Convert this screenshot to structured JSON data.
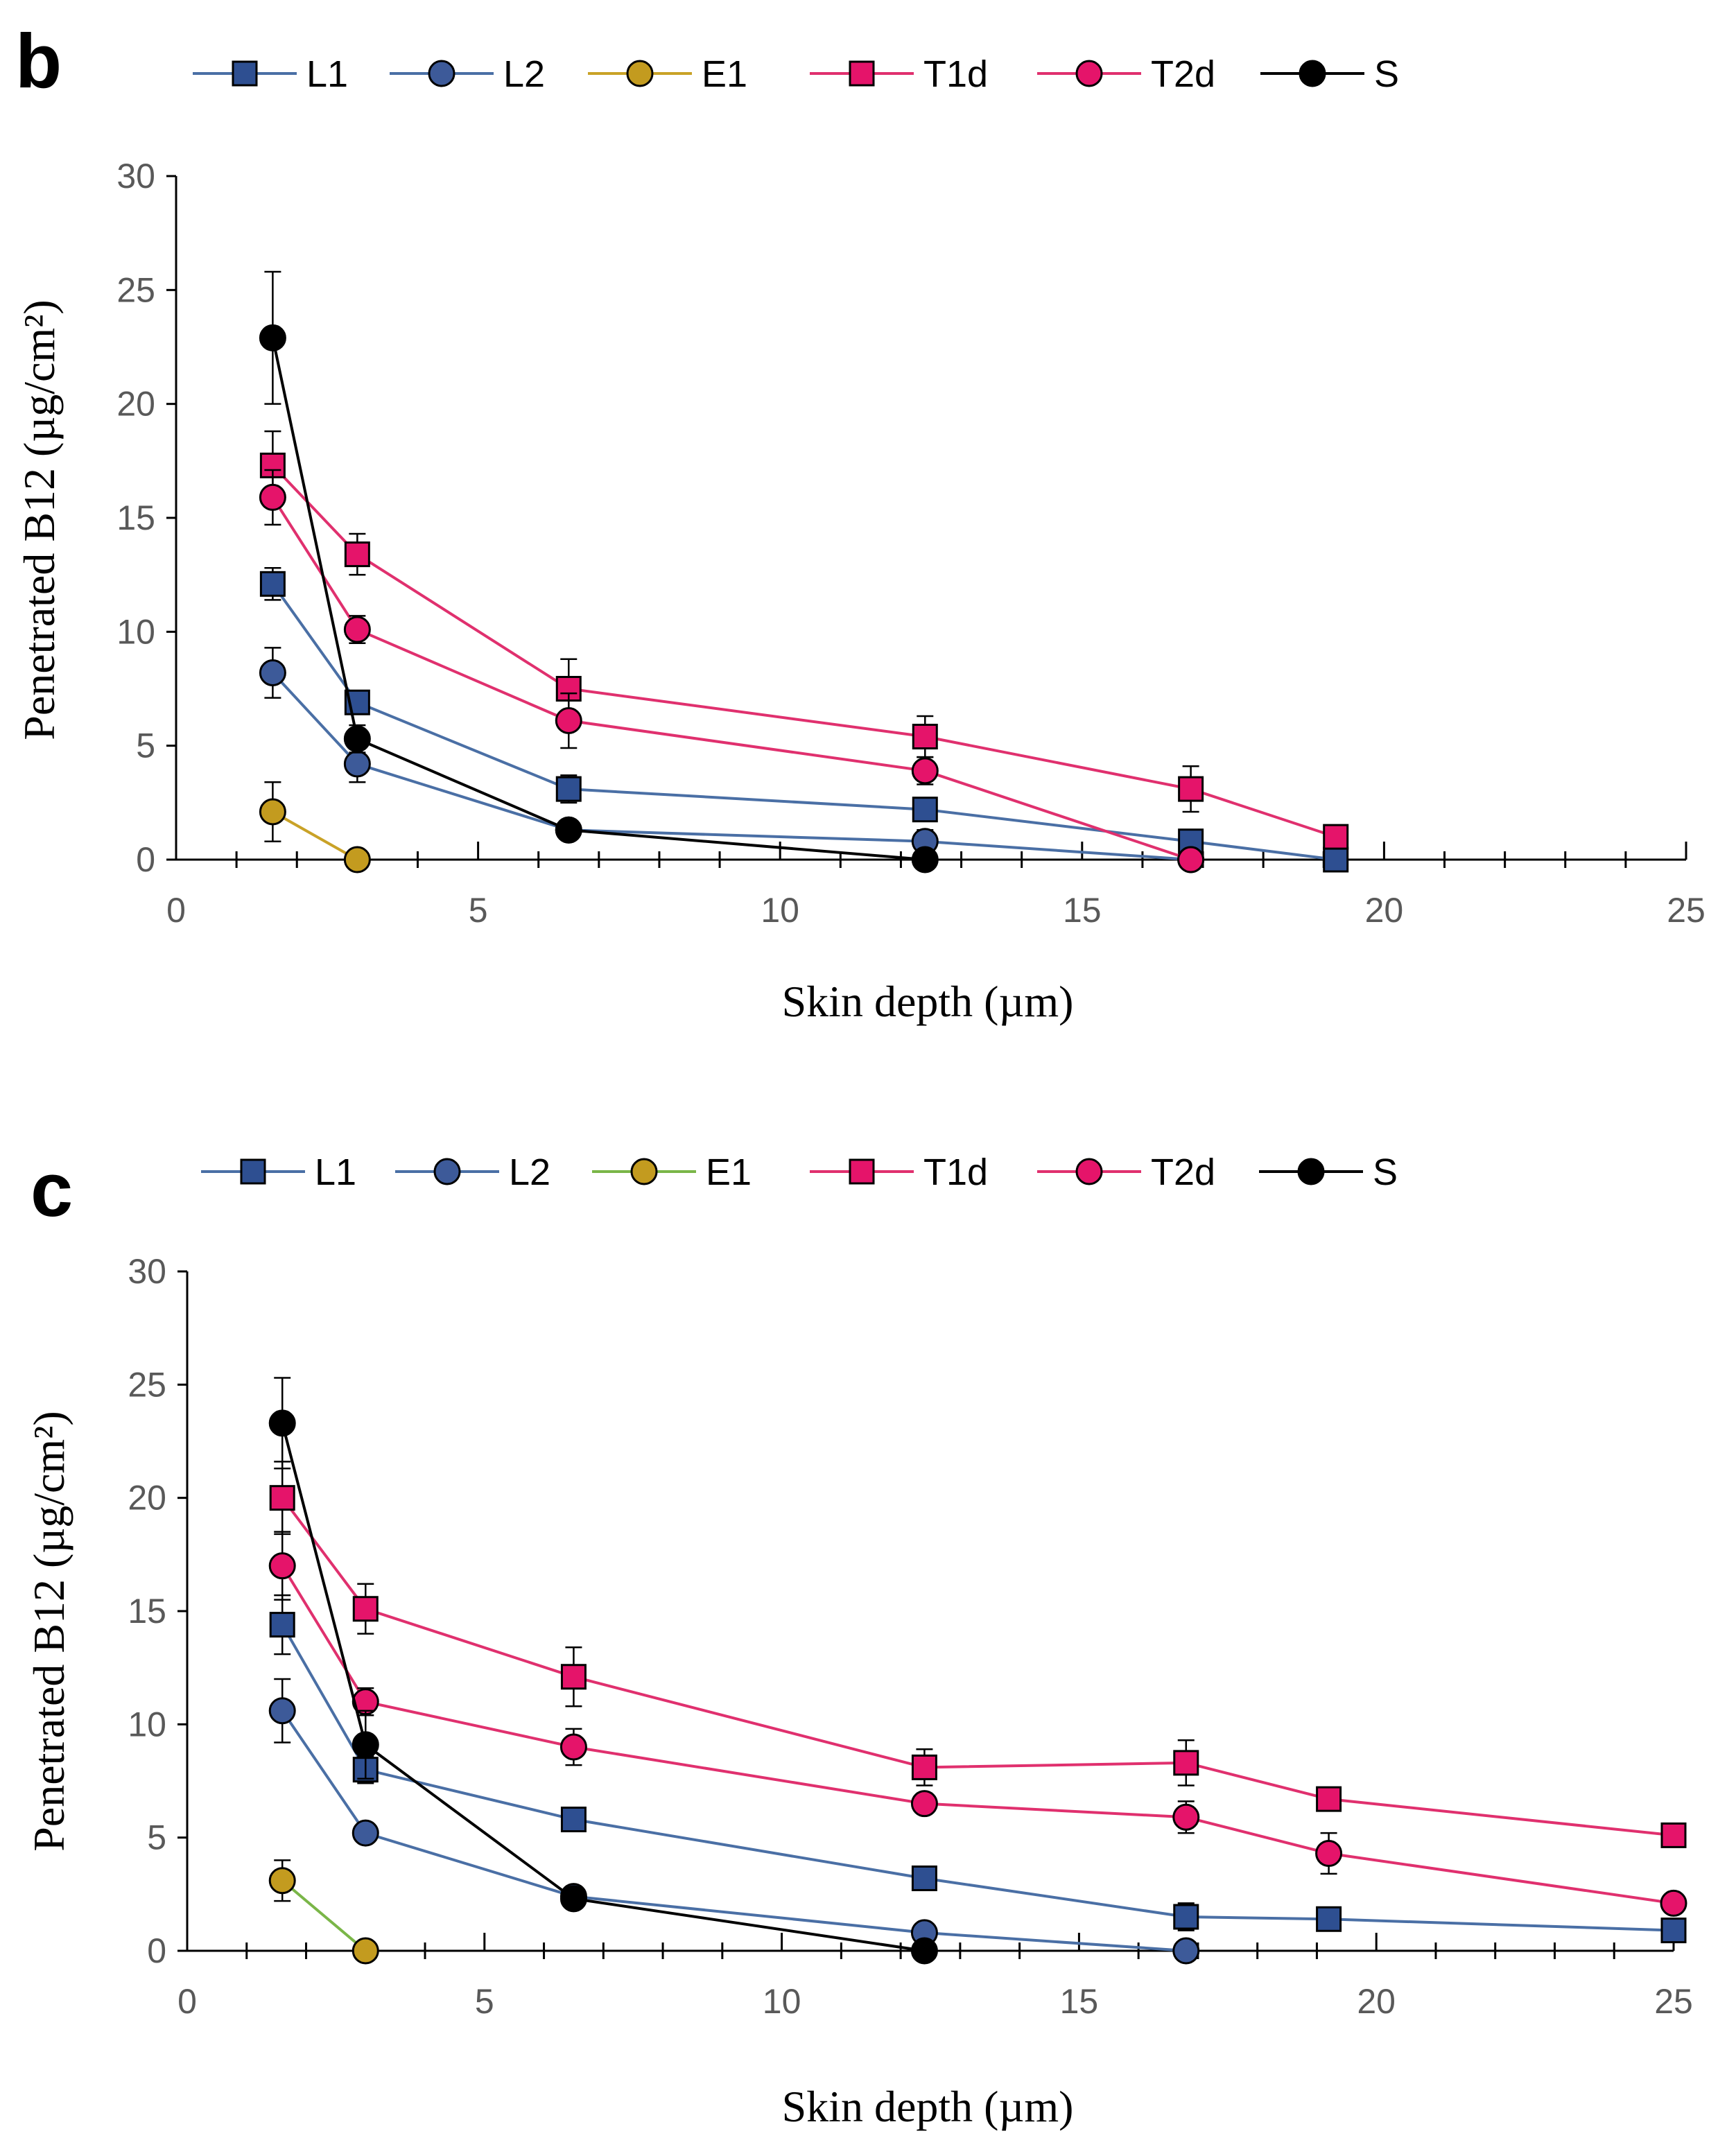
{
  "chart_data": [
    {
      "type": "line",
      "panel": "b",
      "xlabel": "Skin depth (µm)",
      "ylabel": "Penetrated B12 (µg/cm²)",
      "xlim": [
        0,
        25
      ],
      "ylim": [
        0,
        30
      ],
      "xticks": [
        0,
        5,
        10,
        15,
        20,
        25
      ],
      "yticks": [
        0,
        5,
        10,
        15,
        20,
        25,
        30
      ],
      "legend_position": "top",
      "series": [
        {
          "name": "L1",
          "marker": "square",
          "line_color": "#4a6fa5",
          "fill": "#2e4f91",
          "x": [
            1.6,
            3.0,
            6.5,
            12.4,
            16.8,
            19.2
          ],
          "y": [
            12.1,
            6.9,
            3.1,
            2.2,
            0.8,
            0.0
          ],
          "err": [
            0.7,
            0.5,
            0.6,
            0,
            0.5,
            0
          ]
        },
        {
          "name": "L2",
          "marker": "circle",
          "line_color": "#4a6fa5",
          "fill": "#3d5a99",
          "x": [
            1.6,
            3.0,
            6.5,
            12.4,
            16.8
          ],
          "y": [
            8.2,
            4.2,
            1.3,
            0.8,
            0.0
          ],
          "err": [
            1.1,
            0.8,
            0.4,
            0.5,
            0
          ]
        },
        {
          "name": "E1",
          "marker": "circle",
          "line_color": "#c9a227",
          "fill": "#c39b1f",
          "x": [
            1.6,
            3.0
          ],
          "y": [
            2.1,
            0.0
          ],
          "err": [
            1.3,
            0
          ]
        },
        {
          "name": "T1d",
          "marker": "square",
          "line_color": "#e0306e",
          "fill": "#e5146a",
          "x": [
            1.6,
            3.0,
            6.5,
            12.4,
            16.8,
            19.2
          ],
          "y": [
            17.3,
            13.4,
            7.5,
            5.4,
            3.1,
            1.0
          ],
          "err": [
            1.5,
            0.9,
            1.3,
            0.9,
            1.0,
            0
          ]
        },
        {
          "name": "T2d",
          "marker": "circle",
          "line_color": "#e0306e",
          "fill": "#e5146a",
          "x": [
            1.6,
            3.0,
            6.5,
            12.4,
            16.8
          ],
          "y": [
            15.9,
            10.1,
            6.1,
            3.9,
            0.0
          ],
          "err": [
            1.2,
            0.6,
            1.2,
            0.6,
            0
          ]
        },
        {
          "name": "S",
          "marker": "circle",
          "line_color": "#000000",
          "fill": "#000000",
          "x": [
            1.6,
            3.0,
            6.5,
            12.4
          ],
          "y": [
            22.9,
            5.3,
            1.3,
            0.0
          ],
          "err": [
            2.9,
            0.6,
            0.3,
            0
          ]
        }
      ]
    },
    {
      "type": "line",
      "panel": "c",
      "xlabel": "Skin depth (µm)",
      "ylabel": "Penetrated B12 (µg/cm²)",
      "xlim": [
        0,
        25
      ],
      "ylim": [
        0,
        30
      ],
      "xticks": [
        0,
        5,
        10,
        15,
        20,
        25
      ],
      "yticks": [
        0,
        5,
        10,
        15,
        20,
        25,
        30
      ],
      "legend_position": "top",
      "series": [
        {
          "name": "L1",
          "marker": "square",
          "line_color": "#4a6fa5",
          "fill": "#2e4f91",
          "x": [
            1.6,
            3.0,
            6.5,
            12.4,
            16.8,
            19.2,
            25.0
          ],
          "y": [
            14.4,
            8.0,
            5.8,
            3.2,
            1.5,
            1.4,
            0.9
          ],
          "err": [
            1.3,
            0.6,
            0.5,
            0.4,
            0.6,
            0.4,
            0.3
          ]
        },
        {
          "name": "L2",
          "marker": "circle",
          "line_color": "#4a6fa5",
          "fill": "#3d5a99",
          "x": [
            1.6,
            3.0,
            6.5,
            12.4,
            16.8
          ],
          "y": [
            10.6,
            5.2,
            2.4,
            0.8,
            0.0
          ],
          "err": [
            1.4,
            0.3,
            0.3,
            0.2,
            0
          ]
        },
        {
          "name": "E1",
          "marker": "circle",
          "line_color": "#7ab648",
          "fill": "#c39b1f",
          "x": [
            1.6,
            3.0
          ],
          "y": [
            3.1,
            0.0
          ],
          "err": [
            0.9,
            0
          ]
        },
        {
          "name": "T1d",
          "marker": "square",
          "line_color": "#e0306e",
          "fill": "#e5146a",
          "x": [
            1.6,
            3.0,
            6.5,
            12.4,
            16.8,
            19.2,
            25.0
          ],
          "y": [
            20.0,
            15.1,
            12.1,
            8.1,
            8.3,
            6.7,
            5.1
          ],
          "err": [
            1.6,
            1.1,
            1.3,
            0.8,
            1.0,
            0.4,
            0.3
          ]
        },
        {
          "name": "T2d",
          "marker": "circle",
          "line_color": "#e0306e",
          "fill": "#e5146a",
          "x": [
            1.6,
            3.0,
            6.5,
            12.4,
            16.8,
            19.2,
            25.0
          ],
          "y": [
            17.0,
            11.0,
            9.0,
            6.5,
            5.9,
            4.3,
            2.1
          ],
          "err": [
            1.5,
            0.6,
            0.8,
            0.4,
            0.7,
            0.9,
            0.3
          ]
        },
        {
          "name": "S",
          "marker": "circle",
          "line_color": "#000000",
          "fill": "#000000",
          "x": [
            1.6,
            3.0,
            6.5,
            12.4
          ],
          "y": [
            23.3,
            9.1,
            2.3,
            0.0
          ],
          "err": [
            2.0,
            1.5,
            0.3,
            0
          ]
        }
      ]
    }
  ]
}
